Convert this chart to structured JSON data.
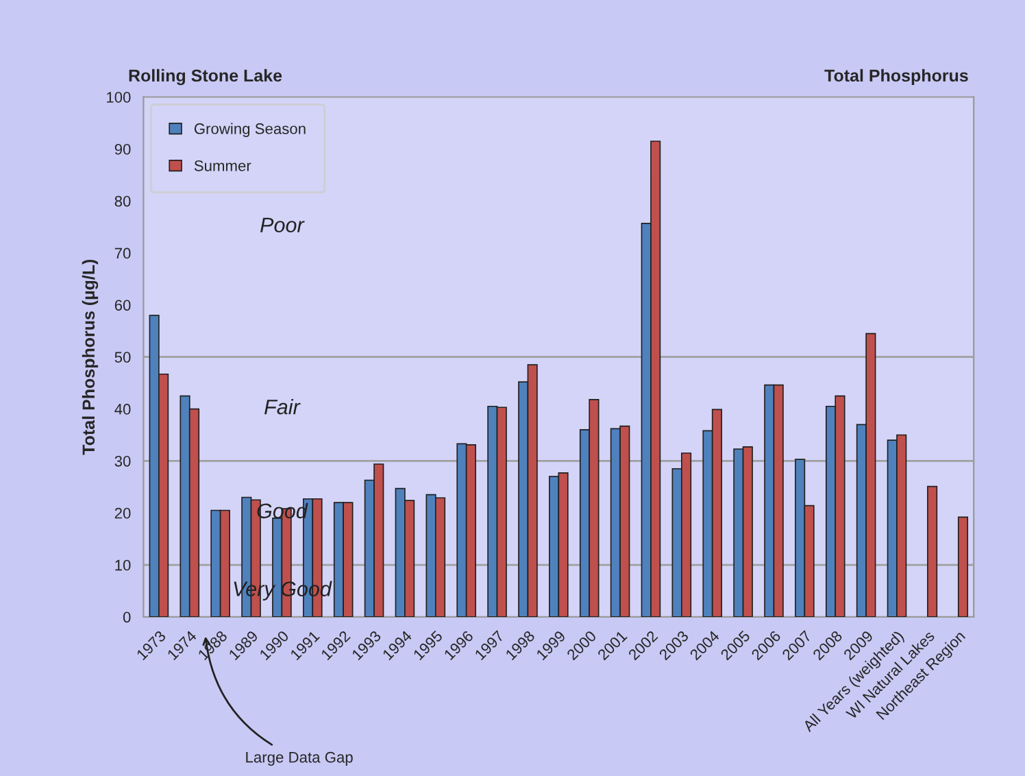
{
  "chart_data": {
    "type": "bar",
    "title": "Rolling Stone Lake",
    "subtitle": "Total Phosphorus",
    "ylabel": "Total Phosphorus (µg/L)",
    "categories": [
      "1973",
      "1974",
      "1988",
      "1989",
      "1990",
      "1991",
      "1992",
      "1993",
      "1994",
      "1995",
      "1996",
      "1997",
      "1998",
      "1999",
      "2000",
      "2001",
      "2002",
      "2003",
      "2004",
      "2005",
      "2006",
      "2007",
      "2008",
      "2009",
      "All Years (weighted)",
      "WI Natural Lakes",
      "Northeast Region"
    ],
    "series": [
      {
        "name": "Growing Season",
        "color": "#4f81bd",
        "values": [
          58,
          42.5,
          20.5,
          23,
          19,
          22.7,
          22,
          26.3,
          24.7,
          23.5,
          33.3,
          40.5,
          45.2,
          27,
          36,
          36.2,
          75.7,
          28.5,
          35.8,
          32.3,
          44.6,
          30.3,
          40.5,
          37,
          34,
          null,
          null
        ]
      },
      {
        "name": "Summer",
        "color": "#c0504d",
        "values": [
          46.7,
          40,
          20.5,
          22.5,
          20.8,
          22.7,
          22,
          29.4,
          22.4,
          22.9,
          33.1,
          40.3,
          48.5,
          27.7,
          41.8,
          36.7,
          91.5,
          31.5,
          39.9,
          32.7,
          44.6,
          21.4,
          42.5,
          54.5,
          35,
          25.1,
          19.2
        ]
      }
    ],
    "ylim": [
      0,
      100
    ],
    "yticks": [
      0,
      10,
      20,
      30,
      40,
      50,
      60,
      70,
      80,
      90,
      100
    ],
    "ref_lines": [
      {
        "axis": "y",
        "value": 10,
        "color": "#a0a0a0"
      },
      {
        "axis": "y",
        "value": 30,
        "color": "#a0a0a0"
      },
      {
        "axis": "y",
        "value": 50,
        "color": "#a0a0a0"
      }
    ],
    "annotations": [
      "Poor",
      "Fair",
      "Good",
      "Very Good",
      "Large Data Gap"
    ],
    "legend": "top left",
    "grid": false
  }
}
